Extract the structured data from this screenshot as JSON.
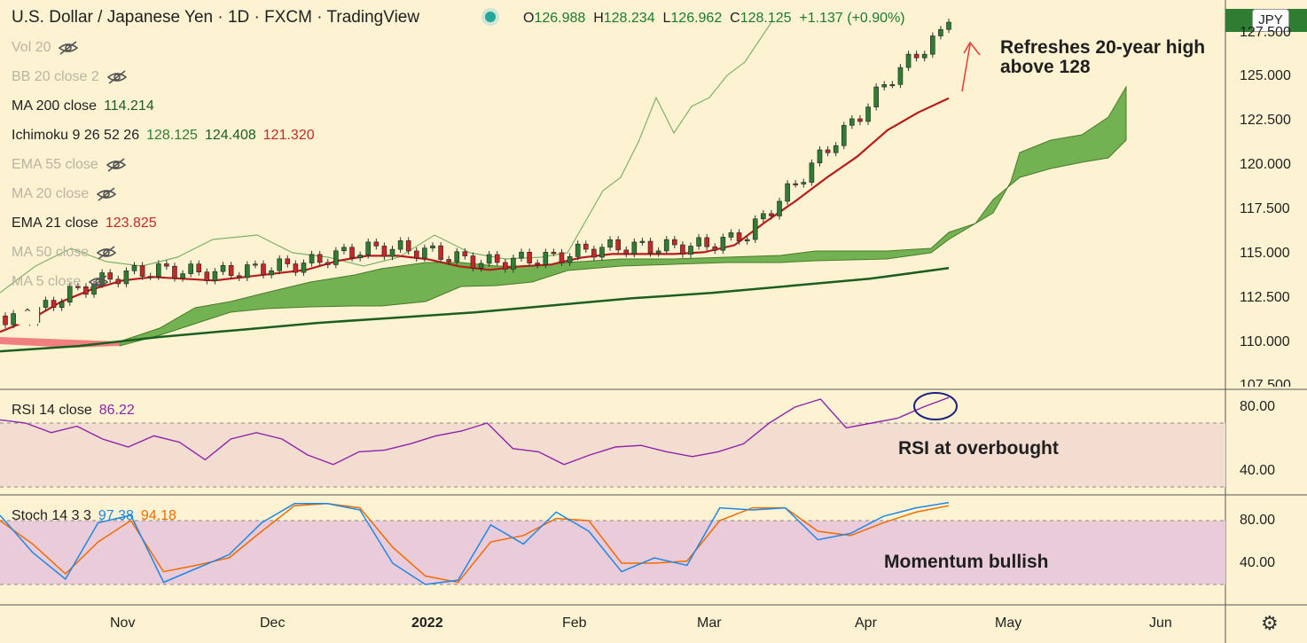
{
  "header": {
    "title": "U.S. Dollar / Japanese Yen · 1D · FXCM · TradingView",
    "ohlc": {
      "o_label": "O",
      "o": "126.988",
      "h_label": "H",
      "h": "128.234",
      "l_label": "L",
      "l": "126.962",
      "c_label": "C",
      "c": "128.125",
      "change": "+1.137 (+0.90%)"
    }
  },
  "currency_button": "JPY",
  "indicators": [
    {
      "label": "Vol 20",
      "value": "",
      "hidden": true
    },
    {
      "label": "BB 20 close 2",
      "value": "",
      "hidden": true
    },
    {
      "label": "MA 200 close",
      "value": "114.214",
      "hidden": false
    },
    {
      "label": "Ichimoku 9 26 52 26",
      "values": [
        "128.125",
        "124.408",
        "121.320"
      ],
      "hidden": false
    },
    {
      "label": "EMA 55 close",
      "value": "",
      "hidden": true
    },
    {
      "label": "MA 20 close",
      "value": "",
      "hidden": true
    },
    {
      "label": "EMA 21 close",
      "value": "123.825",
      "hidden": false
    },
    {
      "label": "MA 50 close",
      "value": "",
      "hidden": true
    },
    {
      "label": "MA 5 close",
      "value": "",
      "hidden": true
    }
  ],
  "rsi": {
    "label": "RSI 14 close",
    "value": "86.22",
    "annotation": "RSI at overbought"
  },
  "stoch": {
    "label": "Stoch 14 3 3",
    "k": "97.38",
    "d": "94.18",
    "annotation": "Momentum bullish"
  },
  "annotation_main": [
    "Refreshes 20-year high",
    "above 128"
  ],
  "colors": {
    "background": "#fdf3d2",
    "cloud": "#5aa63c",
    "ema21": "#b71c1c",
    "ma200": "#1b5e20",
    "candle_up": "#2e7d32",
    "candle_down": "#c62828",
    "rsi": "#8e24aa",
    "stoch_k": "#1e88e5",
    "stoch_d": "#ef6c00"
  },
  "chart_data": {
    "type": "line",
    "price_ticks": [
      "127.500",
      "125.000",
      "122.500",
      "120.000",
      "117.500",
      "115.000",
      "112.500",
      "110.000",
      "107.500"
    ],
    "price_tick_values": [
      127.5,
      125,
      122.5,
      120,
      117.5,
      115,
      112.5,
      110,
      107.5
    ],
    "rsi_ticks": [
      "80.00",
      "40.00"
    ],
    "stoch_ticks": [
      "80.00",
      "40.00"
    ],
    "x_labels": [
      "Nov",
      "Dec",
      "2022",
      "Feb",
      "Mar",
      "Apr",
      "May",
      "Jun"
    ],
    "x_label_positions_date": [
      "2021-11",
      "2021-12",
      "2022-01",
      "2022-02",
      "2022-03",
      "2022-04",
      "2022-05",
      "2022-06"
    ],
    "ema21": [
      110.6,
      111.3,
      112.3,
      113.0,
      113.5,
      113.7,
      113.6,
      113.5,
      113.7,
      113.9,
      114.1,
      114.6,
      114.9,
      114.9,
      114.7,
      114.3,
      114.1,
      114.3,
      114.4,
      114.8,
      115.0,
      115.0,
      115.0,
      115.1,
      115.5,
      116.8,
      118.0,
      119.3,
      120.5,
      122.0,
      123.0,
      123.8
    ],
    "ma200": [
      109.5,
      109.8,
      110.3,
      110.7,
      111.1,
      111.4,
      111.7,
      112.1,
      112.5,
      112.8,
      113.2,
      113.6,
      114.2
    ],
    "rsi_values": [
      72,
      70,
      64,
      68,
      60,
      55,
      62,
      58,
      47,
      60,
      64,
      60,
      50,
      44,
      52,
      53,
      57,
      62,
      65,
      70,
      54,
      52,
      44,
      50,
      55,
      56,
      52,
      49,
      52,
      57,
      70,
      80,
      85,
      67,
      70,
      73,
      80,
      86
    ],
    "stoch_k": [
      85,
      50,
      25,
      78,
      85,
      22,
      35,
      48,
      78,
      96,
      96,
      90,
      40,
      20,
      24,
      76,
      58,
      88,
      70,
      32,
      45,
      38,
      92,
      90,
      92,
      62,
      68,
      84,
      92,
      97
    ],
    "stoch_d": [
      80,
      58,
      30,
      60,
      80,
      32,
      38,
      45,
      70,
      94,
      96,
      92,
      55,
      28,
      22,
      60,
      66,
      82,
      80,
      40,
      40,
      42,
      80,
      92,
      92,
      70,
      66,
      78,
      88,
      94
    ]
  }
}
